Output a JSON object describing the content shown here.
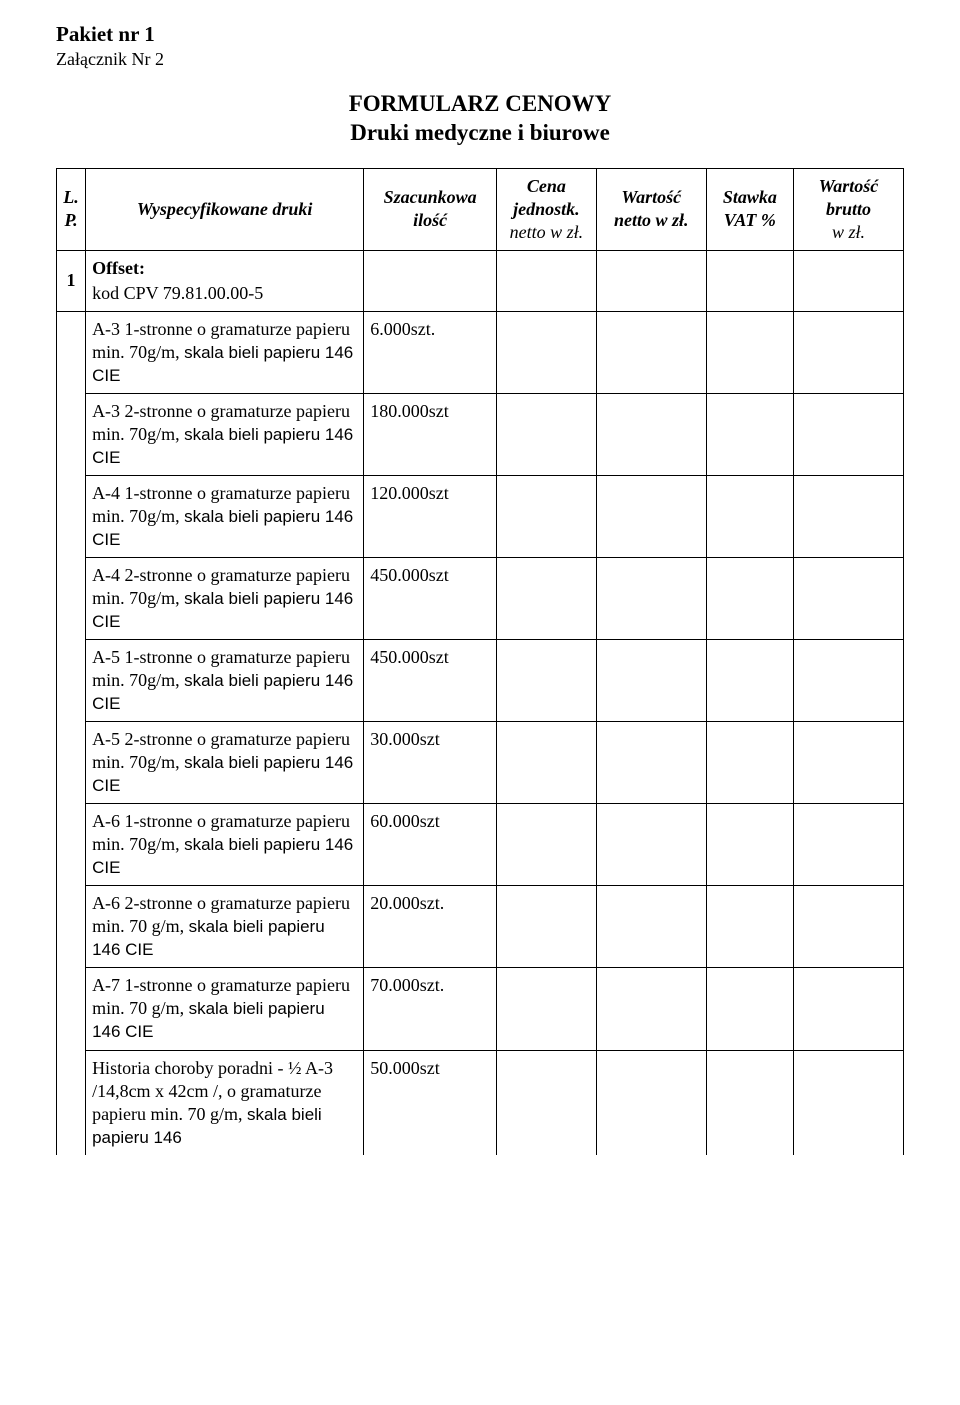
{
  "header": {
    "pakiet": "Pakiet nr 1",
    "zalacznik": "Załącznik Nr 2"
  },
  "title": {
    "line1": "FORMULARZ  CENOWY",
    "line2": "Druki medyczne i biurowe"
  },
  "columns": {
    "lp": "L. P.",
    "spec": "Wyspecyfikowane druki",
    "qty": "Szacunkowa ilość",
    "unit_line1": "Cena jednostk.",
    "unit_line2": "netto w zł.",
    "net": "Wartość netto w zł.",
    "vat": "Stawka VAT %",
    "gross_line1": "Wartość brutto",
    "gross_line2": "w zł."
  },
  "offset": {
    "lp": "1",
    "label": "Offset:",
    "cpv": " kod CPV 79.81.00.00-5"
  },
  "rows": [
    {
      "spec_lead": "A-3   1-stronne  o gramaturze papieru min. 70g/m, ",
      "spec_sans": "skala bieli papieru 146 CIE",
      "qty": "6.000szt."
    },
    {
      "spec_lead": "A-3   2-stronne  o gramaturze papieru min. 70g/m, ",
      "spec_sans": "skala bieli papieru  146 CIE",
      "qty": "180.000szt"
    },
    {
      "spec_lead": "A-4   1-stronne o gramaturze papieru min. 70g/m, ",
      "spec_sans": "skala bieli papieru 146 CIE",
      "qty": "120.000szt"
    },
    {
      "spec_lead": "A-4   2-stronne o gramaturze papieru min. 70g/m,  ",
      "spec_sans": "skala bieli papieru 146 CIE",
      "qty": "450.000szt"
    },
    {
      "spec_lead": "A-5   1-stronne o gramaturze papieru min. 70g/m,  ",
      "spec_sans": "skala bieli papieru 146 CIE",
      "qty": "450.000szt"
    },
    {
      "spec_lead": "A-5   2-stronne o gramaturze papieru min. 70g/m,  ",
      "spec_sans": "skala bieli papieru  146 CIE",
      "qty": "30.000szt"
    },
    {
      "spec_lead": "A-6   1-stronne o gramaturze papieru min. 70g/m,  ",
      "spec_sans": "skala bieli papieru 146 CIE",
      "qty": "60.000szt"
    },
    {
      "spec_lead": "A-6   2-stronne o gramaturze papieru min. 70 g/m,  ",
      "spec_sans": "skala bieli papieru 146 CIE",
      "qty": "20.000szt."
    },
    {
      "spec_lead": "A-7   1-stronne o gramaturze papieru min. 70 g/m, ",
      "spec_sans": "skala bieli papieru 146 CIE",
      "qty": "70.000szt."
    },
    {
      "spec_lead": "Historia choroby poradni  -  ½ A-3  /14,8cm x 42cm /,          o gramaturze papieru min. 70 g/m,  ",
      "spec_sans": "skala bieli papieru 146",
      "qty": "50.000szt"
    }
  ]
}
